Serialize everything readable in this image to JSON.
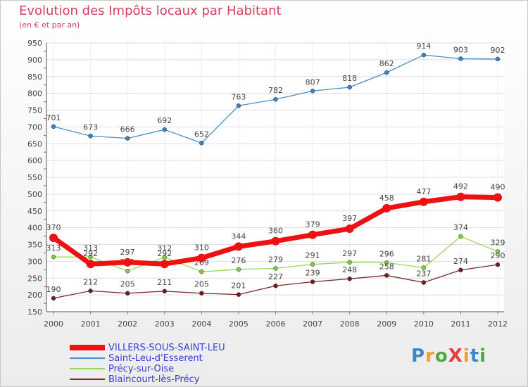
{
  "title": "Evolution des Impôts locaux par Habitant",
  "subtitle": "(en € et par an)",
  "logo": {
    "text": "ProXiti",
    "colors": [
      "#3d88c8",
      "#f0a030",
      "#4fa83d",
      "#e24040",
      "#f0a030",
      "#3d88c8",
      "#4fa83d"
    ]
  },
  "colors": {
    "title": "#d6405f",
    "axis_text": "#444444",
    "grid": "#dddddd"
  },
  "chart_data": {
    "type": "line",
    "x": [
      "2000",
      "2001",
      "2002",
      "2003",
      "2004",
      "2005",
      "2006",
      "2007",
      "2008",
      "2009",
      "2010",
      "2011",
      "2012"
    ],
    "ylim": [
      150,
      950
    ],
    "yticks": [
      150,
      200,
      250,
      300,
      350,
      400,
      450,
      500,
      550,
      600,
      650,
      700,
      750,
      800,
      850,
      900,
      950
    ],
    "grid": true,
    "legend_position": "bottom-left",
    "series": [
      {
        "name": "Saint-Leu-d'Esserent",
        "color": "#4b8fc9",
        "marker_color": "#3a82c4",
        "width": 1.3,
        "values": [
          701,
          673,
          666,
          692,
          652,
          763,
          782,
          807,
          818,
          862,
          914,
          903,
          902
        ],
        "label_side": [
          "above",
          "above",
          "above",
          "above",
          "above",
          "above",
          "above",
          "above",
          "above",
          "above",
          "above",
          "above",
          "above"
        ]
      },
      {
        "name": "Précy-sur-Oise",
        "color": "#9ad85a",
        "marker_color": "#7fcc3c",
        "width": 1.3,
        "values": [
          313,
          313,
          271,
          312,
          269,
          276,
          279,
          291,
          297,
          296,
          281,
          374,
          329
        ],
        "label_side": [
          "above",
          "above",
          "above",
          "above",
          "above",
          "above",
          "above",
          "above",
          "above",
          "above",
          "above",
          "above",
          "above"
        ]
      },
      {
        "name": "Blaincourt-lès-Précy",
        "color": "#7a2a2a",
        "marker_color": "#6b1f1f",
        "width": 1.3,
        "values": [
          190,
          212,
          205,
          211,
          205,
          201,
          227,
          239,
          248,
          258,
          237,
          274,
          290
        ],
        "label_side": [
          "above",
          "above",
          "above",
          "above",
          "above",
          "above",
          "above",
          "above",
          "above",
          "above",
          "above",
          "above",
          "above"
        ]
      },
      {
        "name": "VILLERS-SOUS-SAINT-LEU",
        "color": "#ee1111",
        "marker_color": "#ee1111",
        "width": 7,
        "values": [
          370,
          292,
          297,
          292,
          310,
          344,
          360,
          379,
          397,
          458,
          477,
          492,
          490
        ],
        "label_side": [
          "above",
          "above",
          "above",
          "above",
          "above",
          "above",
          "above",
          "above",
          "above",
          "above",
          "above",
          "above",
          "above"
        ]
      }
    ],
    "legend": [
      {
        "name": "VILLERS-SOUS-SAINT-LEU",
        "color": "#ee1111",
        "text_color": "#3b3bd6"
      },
      {
        "name": "Saint-Leu-d'Esserent",
        "color": "#4b8fc9",
        "text_color": "#3b3bd6"
      },
      {
        "name": "Précy-sur-Oise",
        "color": "#9ad85a",
        "text_color": "#3b3bd6"
      },
      {
        "name": "Blaincourt-lès-Précy",
        "color": "#7a2a2a",
        "text_color": "#3b3bd6"
      }
    ]
  }
}
